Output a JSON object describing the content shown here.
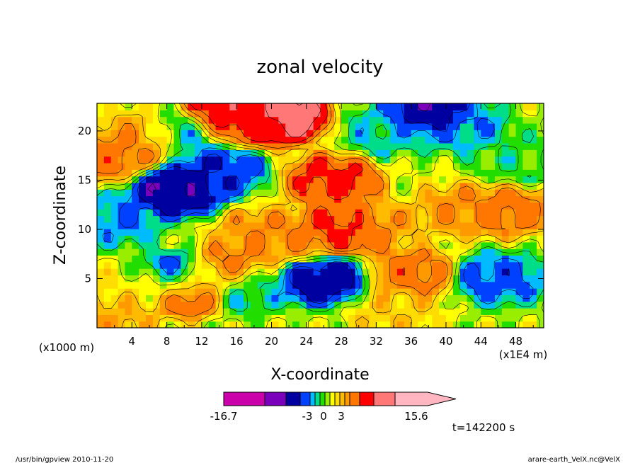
{
  "chart_data": {
    "type": "heatmap",
    "title": "zonal velocity",
    "xlabel": "X-coordinate",
    "ylabel": "Z-coordinate",
    "x_unit_left": "(x1000 m)",
    "x_unit_right": "(x1E4 m)",
    "x_ticks": [
      "4",
      "8",
      "12",
      "16",
      "20",
      "24",
      "28",
      "32",
      "36",
      "40",
      "44",
      "48"
    ],
    "x_tick_values": [
      4,
      8,
      12,
      16,
      20,
      24,
      28,
      32,
      36,
      40,
      44,
      48
    ],
    "y_ticks": [
      "5",
      "10",
      "15",
      "20"
    ],
    "y_tick_values": [
      5,
      10,
      15,
      20
    ],
    "xlim": [
      0,
      51.2
    ],
    "ylim": [
      0,
      22.8
    ],
    "colorbar": {
      "min_label": "-16.7",
      "max_label": "15.6",
      "center_labels": [
        "-3",
        "0",
        "3"
      ],
      "levels": [
        -16.7,
        -12,
        -9,
        -6,
        -4,
        -3,
        -2,
        -1,
        0,
        1,
        2,
        3,
        4,
        6,
        9,
        12,
        15.6
      ],
      "colors": [
        "#cc00aa",
        "#7a00bb",
        "#0000a0",
        "#0040ff",
        "#00bbff",
        "#00dd88",
        "#22dd00",
        "#99ee00",
        "#ffff00",
        "#ffdd00",
        "#ffbb00",
        "#ff9900",
        "#ff7700",
        "#ff0000",
        "#ff7777",
        "#ffb6c1"
      ]
    },
    "features": [
      {
        "x": 10,
        "z": 20,
        "value": -5
      },
      {
        "x": 9,
        "z": 14,
        "value": -9
      },
      {
        "x": 2.5,
        "z": 11,
        "value": -4
      },
      {
        "x": 14,
        "z": 16,
        "value": -6
      },
      {
        "x": 18,
        "z": 21,
        "value": 6
      },
      {
        "x": 21,
        "z": 21.5,
        "value": 12
      },
      {
        "x": 14,
        "z": 21.5,
        "value": 9
      },
      {
        "x": 2,
        "z": 17.5,
        "value": 5
      },
      {
        "x": 6,
        "z": 19.5,
        "value": 4
      },
      {
        "x": 9.5,
        "z": 5,
        "value": -8
      },
      {
        "x": 10.3,
        "z": 4,
        "value": 9
      },
      {
        "x": 27,
        "z": 15,
        "value": 7
      },
      {
        "x": 28,
        "z": 10,
        "value": 8
      },
      {
        "x": 26,
        "z": 5,
        "value": -8
      },
      {
        "x": 33,
        "z": 20,
        "value": -3
      },
      {
        "x": 42,
        "z": 20.5,
        "value": -4
      },
      {
        "x": 38,
        "z": 22,
        "value": -9
      },
      {
        "x": 47,
        "z": 12,
        "value": 5
      },
      {
        "x": 42,
        "z": 12,
        "value": 4
      },
      {
        "x": 46,
        "z": 5,
        "value": -5
      },
      {
        "x": 36,
        "z": 5.5,
        "value": 5
      },
      {
        "x": 17,
        "z": 4,
        "value": -3
      },
      {
        "x": 15,
        "z": 6,
        "value": 5
      },
      {
        "x": 23,
        "z": 9,
        "value": 4
      },
      {
        "x": 19,
        "z": 9.5,
        "value": 4
      },
      {
        "x": 31,
        "z": 10.5,
        "value": 4
      },
      {
        "x": 2,
        "z": 1.5,
        "value": 3
      },
      {
        "x": 48,
        "z": 17,
        "value": -2
      },
      {
        "x": 5,
        "z": 4,
        "value": 1
      },
      {
        "x": 34,
        "z": 2,
        "value": 2
      }
    ]
  },
  "time_label": "t=142200 s",
  "footer_left": "/usr/bin/gpview   2010-11-20",
  "footer_right": "arare-earth_VelX.nc@VelX"
}
